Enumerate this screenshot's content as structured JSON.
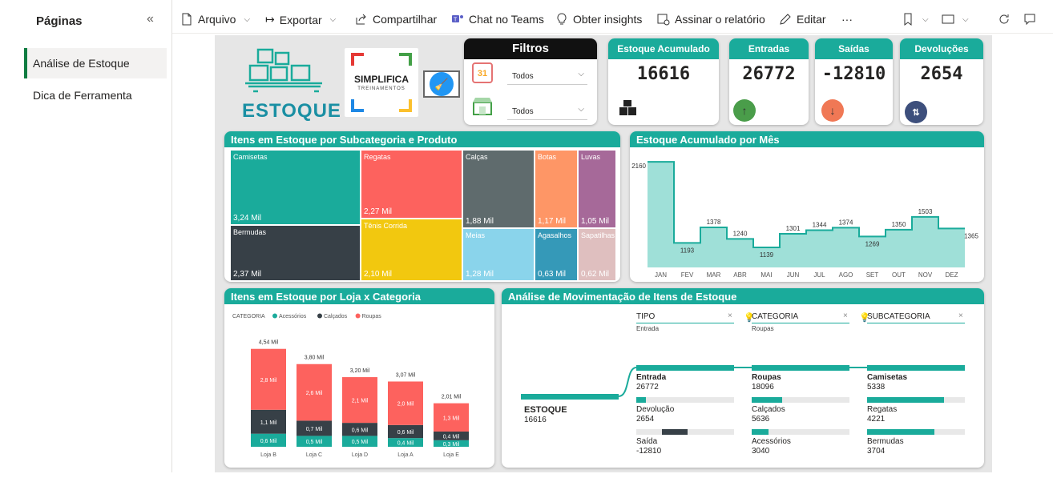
{
  "sidebar": {
    "title": "Páginas",
    "collapse_glyph": "«",
    "items": [
      {
        "label": "Análise de Estoque"
      },
      {
        "label": "Dica de Ferramenta"
      }
    ]
  },
  "toolbar": {
    "arquivo": "Arquivo",
    "exportar": "Exportar",
    "compartilhar": "Compartilhar",
    "teams": "Chat no Teams",
    "insights": "Obter insights",
    "assinar": "Assinar o relatório",
    "editar": "Editar",
    "more": "···"
  },
  "logo": {
    "estoque": "ESTOQUE",
    "simplifica": "SIMPLIFICA",
    "treinamentos": "TREINAMENTOS"
  },
  "filtros": {
    "title": "Filtros",
    "date_value": "Todos",
    "store_value": "Todos",
    "calendar_day": "31"
  },
  "kpis": [
    {
      "label": "Estoque Acumulado",
      "value": "16616",
      "icon": "boxes-icon"
    },
    {
      "label": "Entradas",
      "value": "26772",
      "icon": "arrow-up-icon",
      "color": "#4a9d4a"
    },
    {
      "label": "Saídas",
      "value": "-12810",
      "icon": "arrow-down-icon",
      "color": "#f07855"
    },
    {
      "label": "Devoluções",
      "value": "2654",
      "icon": "swap-icon",
      "color": "#3d4f7c"
    }
  ],
  "treemap": {
    "title": "Itens em Estoque por Subcategoria e Produto",
    "cells": [
      {
        "name": "Camisetas",
        "value": "3,24 Mil",
        "color": "#1aab9b"
      },
      {
        "name": "Bermudas",
        "value": "2,37 Mil",
        "color": "#374047"
      },
      {
        "name": "Regatas",
        "value": "2,27 Mil",
        "color": "#fd625e"
      },
      {
        "name": "Tênis Corrida",
        "value": "2,10 Mil",
        "color": "#f2c80f"
      },
      {
        "name": "Calças",
        "value": "1,88 Mil",
        "color": "#5f6b6d"
      },
      {
        "name": "Meias",
        "value": "1,28 Mil",
        "color": "#8ad4eb"
      },
      {
        "name": "Botas",
        "value": "1,17 Mil",
        "color": "#fe9666"
      },
      {
        "name": "Agasalhos",
        "value": "0,63 Mil",
        "color": "#3599b8"
      },
      {
        "name": "Luvas",
        "value": "1,05 Mil",
        "color": "#a66999"
      },
      {
        "name": "Sapatilhas",
        "value": "0,62 Mil",
        "color": "#dfbfbf"
      }
    ]
  },
  "line_chart": {
    "title": "Estoque Acumulado por Mês",
    "chart_data": {
      "type": "area",
      "x": [
        "JAN",
        "FEV",
        "MAR",
        "ABR",
        "MAI",
        "JUN",
        "JUL",
        "AGO",
        "SET",
        "OUT",
        "NOV",
        "DEZ"
      ],
      "values": [
        2160,
        1193,
        1378,
        1240,
        1139,
        1301,
        1344,
        1374,
        1269,
        1350,
        1503,
        1365
      ],
      "step": true,
      "color": "#1aab9b"
    }
  },
  "bar_chart": {
    "title": "Itens em Estoque por Loja x Categoria",
    "chart_data": {
      "type": "bar",
      "stacked": true,
      "legend_title": "CATEGORIA",
      "categories": [
        "Loja B",
        "Loja C",
        "Loja D",
        "Loja A",
        "Loja E"
      ],
      "totals": [
        "4,54 Mil",
        "3,80 Mil",
        "3,20 Mil",
        "3,07 Mil",
        "2,01 Mil"
      ],
      "series": [
        {
          "name": "Acessórios",
          "color": "#1aab9b",
          "values": [
            0.6,
            0.5,
            0.5,
            0.4,
            0.3
          ],
          "labels": [
            "0,6 Mil",
            "0,5 Mil",
            "0,5 Mil",
            "0,4 Mil",
            "0,3 Mil"
          ]
        },
        {
          "name": "Calçados",
          "color": "#374047",
          "values": [
            1.1,
            0.7,
            0.6,
            0.6,
            0.4
          ],
          "labels": [
            "1,1 Mil",
            "0,7 Mil",
            "0,6 Mil",
            "0,6 Mil",
            "0,4 Mil"
          ]
        },
        {
          "name": "Roupas",
          "color": "#fd625e",
          "values": [
            2.8,
            2.6,
            2.1,
            2.0,
            1.3
          ],
          "labels": [
            "2,8 Mil",
            "2,6 Mil",
            "2,1 Mil",
            "2,0 Mil",
            "1,3 Mil"
          ]
        }
      ]
    }
  },
  "decomp": {
    "title": "Análise de Movimentação de Itens de Estoque",
    "root": {
      "label": "ESTOQUE",
      "value": "16616"
    },
    "levels": [
      {
        "header": "TIPO",
        "filter": "Entrada"
      },
      {
        "header": "CATEGORIA",
        "filter": "Roupas"
      },
      {
        "header": "SUBCATEGORIA",
        "filter": ""
      }
    ],
    "tipo": [
      {
        "label": "Entrada",
        "value": "26772",
        "fill": 1.0,
        "bold": true
      },
      {
        "label": "Devolução",
        "value": "2654",
        "fill": 0.1
      },
      {
        "label": "Saída",
        "value": "-12810",
        "fill": 0.48,
        "dark": true
      }
    ],
    "categoria": [
      {
        "label": "Roupas",
        "value": "18096",
        "fill": 1.0,
        "bold": true
      },
      {
        "label": "Calçados",
        "value": "5636",
        "fill": 0.31
      },
      {
        "label": "Acessórios",
        "value": "3040",
        "fill": 0.17
      }
    ],
    "subcategoria": [
      {
        "label": "Camisetas",
        "value": "5338",
        "fill": 1.0,
        "bold": true
      },
      {
        "label": "Regatas",
        "value": "4221",
        "fill": 0.79
      },
      {
        "label": "Bermudas",
        "value": "3704",
        "fill": 0.69
      }
    ]
  }
}
